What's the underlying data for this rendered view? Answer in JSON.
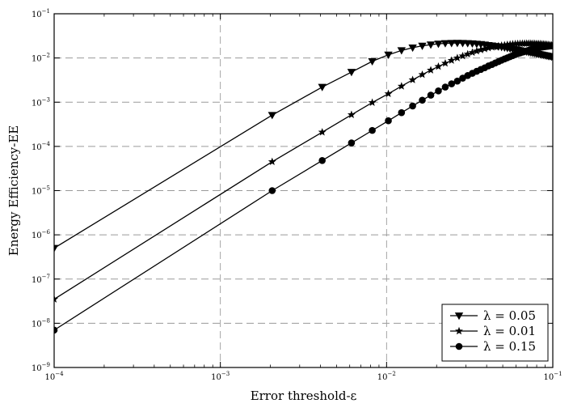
{
  "chart_data": {
    "type": "line",
    "title": "",
    "xlabel": "Error threshold-ε",
    "ylabel": "Energy Efficiency-EE",
    "x_scale": "log",
    "y_scale": "log",
    "xlim": [
      0.0001,
      0.1
    ],
    "ylim": [
      1e-09,
      0.1
    ],
    "grid": "dashed",
    "legend_position": "bottom-right",
    "x_ticks": [
      {
        "base": "10",
        "exp": "−4",
        "value": 0.0001
      },
      {
        "base": "10",
        "exp": "−3",
        "value": 0.001
      },
      {
        "base": "10",
        "exp": "−2",
        "value": 0.01
      },
      {
        "base": "10",
        "exp": "−1",
        "value": 0.1
      }
    ],
    "y_ticks": [
      {
        "base": "10",
        "exp": "−9",
        "value": 1e-09
      },
      {
        "base": "10",
        "exp": "−8",
        "value": 1e-08
      },
      {
        "base": "10",
        "exp": "−7",
        "value": 1e-07
      },
      {
        "base": "10",
        "exp": "−6",
        "value": 1e-06
      },
      {
        "base": "10",
        "exp": "−5",
        "value": 1e-05
      },
      {
        "base": "10",
        "exp": "−4",
        "value": 0.0001
      },
      {
        "base": "10",
        "exp": "−3",
        "value": 0.001
      },
      {
        "base": "10",
        "exp": "−2",
        "value": 0.01
      },
      {
        "base": "10",
        "exp": "−1",
        "value": 0.1
      }
    ],
    "series": [
      {
        "name": "λ = 0.05",
        "marker": "triangle-down",
        "x": [
          0.0001,
          0.00205,
          0.0041,
          0.00615,
          0.0082,
          0.01025,
          0.0123,
          0.01435,
          0.0164,
          0.01845,
          0.0205,
          0.02255,
          0.0246,
          0.02665,
          0.0287,
          0.03075,
          0.0328,
          0.03485,
          0.0369,
          0.03895,
          0.041,
          0.04305,
          0.0451,
          0.04715,
          0.0492,
          0.05125,
          0.0533,
          0.05535,
          0.0574,
          0.05945,
          0.0615,
          0.06355,
          0.0656,
          0.06765,
          0.0697,
          0.07175,
          0.0738,
          0.07585,
          0.0779,
          0.07995,
          0.082,
          0.08405,
          0.0861,
          0.08815,
          0.0902,
          0.09225,
          0.0943,
          0.09635,
          0.0984,
          0.1
        ],
        "y": [
          5e-07,
          0.00051,
          0.0022,
          0.0048,
          0.0084,
          0.0118,
          0.0148,
          0.0171,
          0.0188,
          0.02,
          0.0209,
          0.0214,
          0.0217,
          0.0218,
          0.0217,
          0.0215,
          0.0212,
          0.0208,
          0.0204,
          0.0199,
          0.0194,
          0.019,
          0.0185,
          0.0181,
          0.0176,
          0.0172,
          0.0167,
          0.0163,
          0.0159,
          0.0155,
          0.0151,
          0.0148,
          0.0144,
          0.0141,
          0.0138,
          0.0135,
          0.0132,
          0.0129,
          0.0127,
          0.0124,
          0.0122,
          0.012,
          0.0118,
          0.0116,
          0.0114,
          0.0112,
          0.011,
          0.0109,
          0.0107,
          0.0106
        ]
      },
      {
        "name": "λ = 0.01",
        "marker": "star",
        "x": [
          0.0001,
          0.00205,
          0.0041,
          0.00615,
          0.0082,
          0.01025,
          0.0123,
          0.01435,
          0.0164,
          0.01845,
          0.0205,
          0.02255,
          0.0246,
          0.02665,
          0.0287,
          0.03075,
          0.0328,
          0.03485,
          0.0369,
          0.03895,
          0.041,
          0.04305,
          0.0451,
          0.04715,
          0.0492,
          0.05125,
          0.0533,
          0.05535,
          0.0574,
          0.05945,
          0.0615,
          0.06355,
          0.0656,
          0.06765,
          0.0697,
          0.07175,
          0.0738,
          0.07585,
          0.0779,
          0.07995,
          0.082,
          0.08405,
          0.0861,
          0.08815,
          0.0902,
          0.09225,
          0.0943,
          0.09635,
          0.0984,
          0.1
        ],
        "y": [
          3.5e-08,
          4.5e-05,
          0.00021,
          0.00052,
          0.00098,
          0.00155,
          0.0023,
          0.0032,
          0.0042,
          0.0053,
          0.0064,
          0.0076,
          0.0088,
          0.01,
          0.0111,
          0.0122,
          0.0133,
          0.0143,
          0.0152,
          0.016,
          0.0168,
          0.0175,
          0.0181,
          0.0187,
          0.0192,
          0.0196,
          0.02,
          0.0203,
          0.0206,
          0.0208,
          0.021,
          0.0211,
          0.0212,
          0.0213,
          0.0213,
          0.0213,
          0.0213,
          0.0212,
          0.0211,
          0.021,
          0.0209,
          0.0208,
          0.0206,
          0.0205,
          0.0203,
          0.0201,
          0.0199,
          0.0197,
          0.0195,
          0.0193
        ]
      },
      {
        "name": "λ = 0.15",
        "marker": "circle",
        "x": [
          0.0001,
          0.00205,
          0.0041,
          0.00615,
          0.0082,
          0.01025,
          0.0123,
          0.01435,
          0.0164,
          0.01845,
          0.0205,
          0.02255,
          0.0246,
          0.02665,
          0.0287,
          0.03075,
          0.0328,
          0.03485,
          0.0369,
          0.03895,
          0.041,
          0.04305,
          0.0451,
          0.04715,
          0.0492,
          0.05125,
          0.0533,
          0.05535,
          0.0574,
          0.05945,
          0.0615,
          0.06355,
          0.0656,
          0.06765,
          0.0697,
          0.07175,
          0.0738,
          0.07585,
          0.0779,
          0.07995,
          0.082,
          0.08405,
          0.0861,
          0.08815,
          0.0902,
          0.09225,
          0.0943,
          0.09635,
          0.0984,
          0.1
        ],
        "y": [
          7e-09,
          1e-05,
          4.8e-05,
          0.00012,
          0.00023,
          0.00038,
          0.00058,
          0.00082,
          0.00111,
          0.00144,
          0.0018,
          0.0022,
          0.0026,
          0.003,
          0.0035,
          0.004,
          0.0045,
          0.005,
          0.0055,
          0.006,
          0.0066,
          0.0071,
          0.0077,
          0.0083,
          0.0089,
          0.0095,
          0.0101,
          0.0107,
          0.0113,
          0.0119,
          0.0125,
          0.013,
          0.0135,
          0.014,
          0.0145,
          0.015,
          0.0155,
          0.0159,
          0.0163,
          0.0167,
          0.017,
          0.0173,
          0.0176,
          0.0179,
          0.0181,
          0.0183,
          0.0185,
          0.0187,
          0.0188,
          0.019
        ]
      }
    ]
  }
}
